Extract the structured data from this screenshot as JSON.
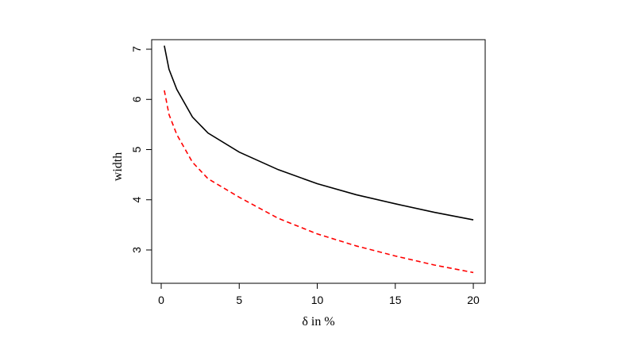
{
  "chart_data": {
    "type": "line",
    "x_label": "δ in %",
    "y_label": "width",
    "x": [
      0.2,
      0.5,
      1,
      2,
      3,
      5,
      7.5,
      10,
      12.5,
      15,
      17.5,
      20
    ],
    "series": [
      {
        "color": "#000000",
        "style": "solid",
        "values": [
          7.07,
          6.6,
          6.2,
          5.65,
          5.33,
          4.95,
          4.6,
          4.32,
          4.1,
          3.92,
          3.75,
          3.6
        ]
      },
      {
        "color": "#ff0000",
        "style": "dashed",
        "values": [
          6.18,
          5.7,
          5.3,
          4.75,
          4.42,
          4.05,
          3.63,
          3.32,
          3.08,
          2.88,
          2.7,
          2.55
        ]
      }
    ],
    "xlim": [
      -0.61,
      20.76
    ],
    "ylim": [
      2.336,
      7.19
    ],
    "xticks": [
      0,
      5,
      10,
      15,
      20
    ],
    "yticks": [
      3,
      4,
      5,
      6,
      7
    ]
  }
}
